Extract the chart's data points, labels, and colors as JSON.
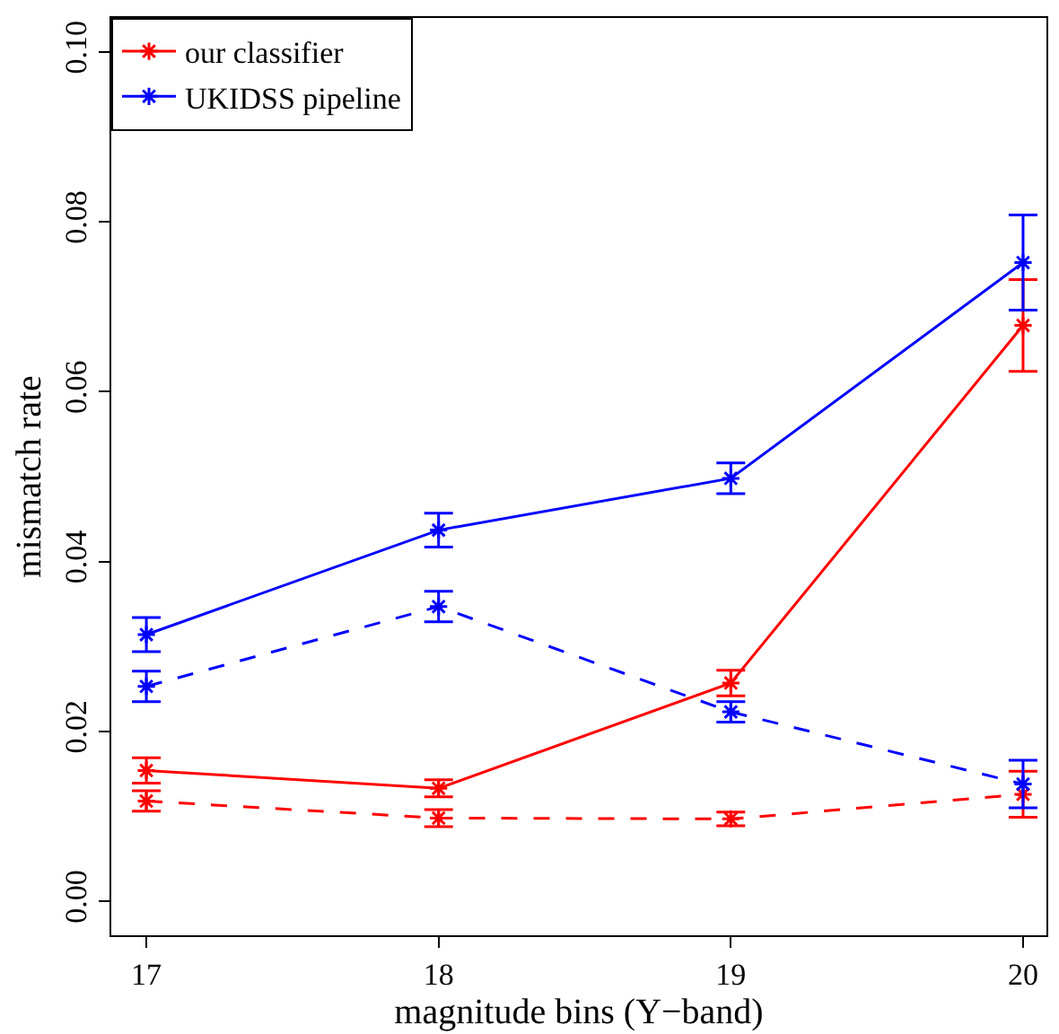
{
  "chart_data": {
    "type": "line",
    "xlabel": "magnitude bins (Y−band)",
    "ylabel": "mismatch rate",
    "x": [
      17,
      18,
      19,
      20
    ],
    "xlim": [
      16.88,
      20.08
    ],
    "xticks": [
      17,
      18,
      19,
      20
    ],
    "ylim": [
      -0.004,
      0.104
    ],
    "yticks": [
      {
        "value": 0,
        "label": "0.00"
      },
      {
        "value": 0.02,
        "label": "0.02"
      },
      {
        "value": 0.04,
        "label": "0.04"
      },
      {
        "value": 0.06,
        "label": "0.06"
      },
      {
        "value": 0.08,
        "label": "0.08"
      },
      {
        "value": 0.1,
        "label": "0.10"
      }
    ],
    "legend": "top left",
    "marker": "cross",
    "series": [
      {
        "name": "our classifier",
        "color": "#ff0000",
        "line_style": "solid",
        "values": [
          0.0154,
          0.0133,
          0.0257,
          0.0678
        ],
        "errors": [
          0.0015,
          0.001,
          0.0015,
          0.0054
        ]
      },
      {
        "name": "UKIDSS pipeline",
        "color": "#0000ff",
        "line_style": "solid",
        "values": [
          0.0314,
          0.0437,
          0.0498,
          0.0752
        ],
        "errors": [
          0.002,
          0.002,
          0.0018,
          0.0056
        ]
      },
      {
        "color": "#ff0000",
        "line_style": "dashed",
        "values": [
          0.0118,
          0.0098,
          0.0097,
          0.0126
        ],
        "errors": [
          0.0012,
          0.001,
          0.0008,
          0.0027
        ]
      },
      {
        "color": "#0000ff",
        "line_style": "dashed",
        "values": [
          0.0253,
          0.0347,
          0.0223,
          0.0138
        ],
        "errors": [
          0.0018,
          0.0018,
          0.0012,
          0.0028
        ]
      }
    ]
  }
}
